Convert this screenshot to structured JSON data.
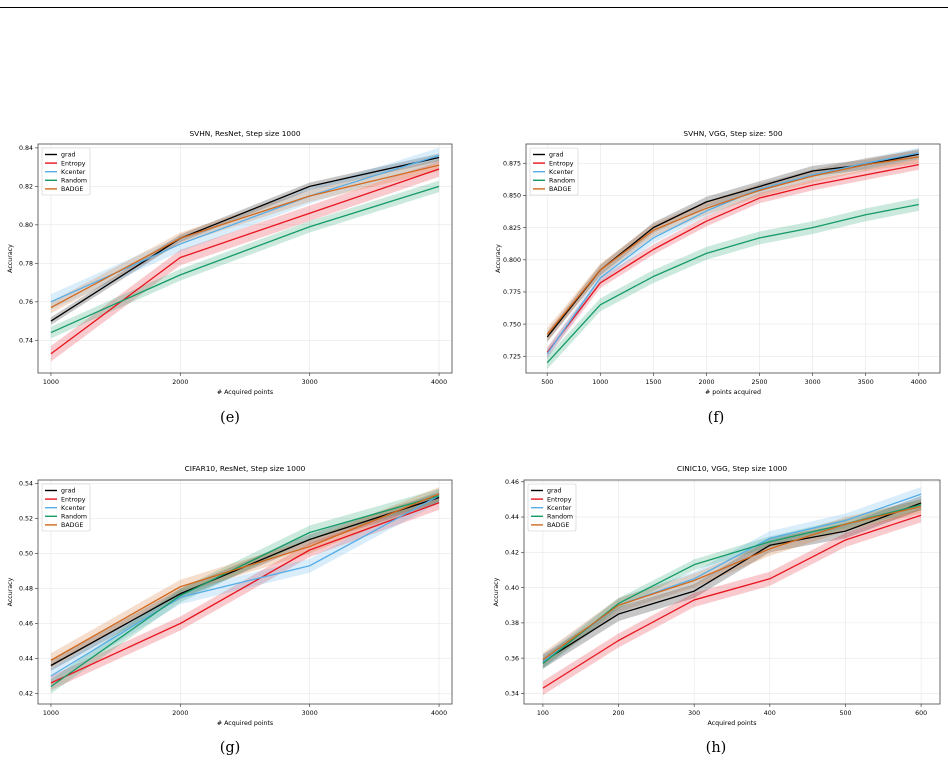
{
  "colors": {
    "grad": "#000000",
    "Entropy": "#e8141e",
    "Kcenter": "#56aee8",
    "Random": "#149b66",
    "BADGE": "#d2691e"
  },
  "captions": [
    "(e)",
    "(f)",
    "(g)",
    "(h)"
  ],
  "chart_data": [
    {
      "type": "line",
      "title": "SVHN, ResNet, Step size 1000",
      "xlabel": "# Acquired points",
      "ylabel": "Accuracy",
      "x": [
        1000,
        2000,
        3000,
        4000
      ],
      "xticks": [
        1000,
        2000,
        3000,
        4000
      ],
      "xlim": [
        900,
        4100
      ],
      "yticks": [
        0.74,
        0.76,
        0.78,
        0.8,
        0.82,
        0.84
      ],
      "ylim": [
        0.723,
        0.842
      ],
      "legend": "top-left",
      "grid": true,
      "series": [
        {
          "name": "grad",
          "values": [
            0.75,
            0.793,
            0.82,
            0.835
          ],
          "band": 0.002
        },
        {
          "name": "Entropy",
          "values": [
            0.733,
            0.783,
            0.806,
            0.829
          ],
          "band": 0.004
        },
        {
          "name": "Kcenter",
          "values": [
            0.76,
            0.79,
            0.815,
            0.836
          ],
          "band": 0.004
        },
        {
          "name": "Random",
          "values": [
            0.744,
            0.774,
            0.799,
            0.82
          ],
          "band": 0.003
        },
        {
          "name": "BADGE",
          "values": [
            0.757,
            0.793,
            0.815,
            0.831
          ],
          "band": 0.003
        }
      ]
    },
    {
      "type": "line",
      "title": "SVHN, VGG, Step size: 500",
      "xlabel": "# points acquired",
      "ylabel": "Accuracy",
      "x": [
        500,
        1000,
        1500,
        2000,
        2500,
        3000,
        3500,
        4000
      ],
      "xticks": [
        500,
        1000,
        1500,
        2000,
        2500,
        3000,
        3500,
        4000
      ],
      "xlim": [
        300,
        4200
      ],
      "yticks": [
        0.725,
        0.75,
        0.775,
        0.8,
        0.825,
        0.85,
        0.875
      ],
      "ylim": [
        0.712,
        0.89
      ],
      "legend": "top-left",
      "grid": true,
      "series": [
        {
          "name": "grad",
          "values": [
            0.74,
            0.792,
            0.825,
            0.845,
            0.857,
            0.869,
            0.874,
            0.882
          ],
          "band": 0.004
        },
        {
          "name": "Entropy",
          "values": [
            0.728,
            0.782,
            0.808,
            0.83,
            0.848,
            0.858,
            0.866,
            0.874
          ],
          "band": 0.004
        },
        {
          "name": "Kcenter",
          "values": [
            0.727,
            0.786,
            0.817,
            0.838,
            0.855,
            0.866,
            0.875,
            0.883
          ],
          "band": 0.004
        },
        {
          "name": "Random",
          "values": [
            0.72,
            0.765,
            0.787,
            0.805,
            0.817,
            0.825,
            0.835,
            0.843
          ],
          "band": 0.005
        },
        {
          "name": "BADGE",
          "values": [
            0.742,
            0.792,
            0.823,
            0.84,
            0.854,
            0.865,
            0.874,
            0.88
          ],
          "band": 0.005
        }
      ]
    },
    {
      "type": "line",
      "title": "CIFAR10, ResNet, Step size 1000",
      "xlabel": "# Acquired points",
      "ylabel": "Accuracy",
      "x": [
        1000,
        2000,
        3000,
        4000
      ],
      "xticks": [
        1000,
        2000,
        3000,
        4000
      ],
      "xlim": [
        900,
        4100
      ],
      "yticks": [
        0.42,
        0.44,
        0.46,
        0.48,
        0.5,
        0.52,
        0.54
      ],
      "ylim": [
        0.414,
        0.542
      ],
      "legend": "top-left",
      "grid": true,
      "series": [
        {
          "name": "grad",
          "values": [
            0.436,
            0.477,
            0.508,
            0.532
          ],
          "band": 0.003
        },
        {
          "name": "Entropy",
          "values": [
            0.426,
            0.46,
            0.502,
            0.529
          ],
          "band": 0.004
        },
        {
          "name": "Kcenter",
          "values": [
            0.43,
            0.475,
            0.493,
            0.533
          ],
          "band": 0.004
        },
        {
          "name": "Random",
          "values": [
            0.424,
            0.476,
            0.512,
            0.533
          ],
          "band": 0.004
        },
        {
          "name": "BADGE",
          "values": [
            0.439,
            0.481,
            0.504,
            0.534
          ],
          "band": 0.004
        }
      ]
    },
    {
      "type": "line",
      "title": "CINIC10, VGG, Step size 1000",
      "xlabel": "Acquired points",
      "ylabel": "Accuracy",
      "x": [
        100,
        200,
        300,
        400,
        500,
        600
      ],
      "xticks": [
        100,
        200,
        300,
        400,
        500,
        600
      ],
      "xlim": [
        75,
        625
      ],
      "yticks": [
        0.34,
        0.36,
        0.38,
        0.4,
        0.42,
        0.44,
        0.46
      ],
      "ylim": [
        0.334,
        0.461
      ],
      "legend": "top-left",
      "grid": true,
      "series": [
        {
          "name": "grad",
          "values": [
            0.358,
            0.385,
            0.398,
            0.424,
            0.432,
            0.448
          ],
          "band": 0.004
        },
        {
          "name": "Entropy",
          "values": [
            0.343,
            0.37,
            0.393,
            0.405,
            0.427,
            0.441
          ],
          "band": 0.004
        },
        {
          "name": "Kcenter",
          "values": [
            0.358,
            0.39,
            0.405,
            0.428,
            0.438,
            0.453
          ],
          "band": 0.004
        },
        {
          "name": "Random",
          "values": [
            0.357,
            0.391,
            0.413,
            0.426,
            0.436,
            0.447
          ],
          "band": 0.003
        },
        {
          "name": "BADGE",
          "values": [
            0.359,
            0.39,
            0.404,
            0.422,
            0.436,
            0.446
          ],
          "band": 0.004
        }
      ]
    }
  ]
}
